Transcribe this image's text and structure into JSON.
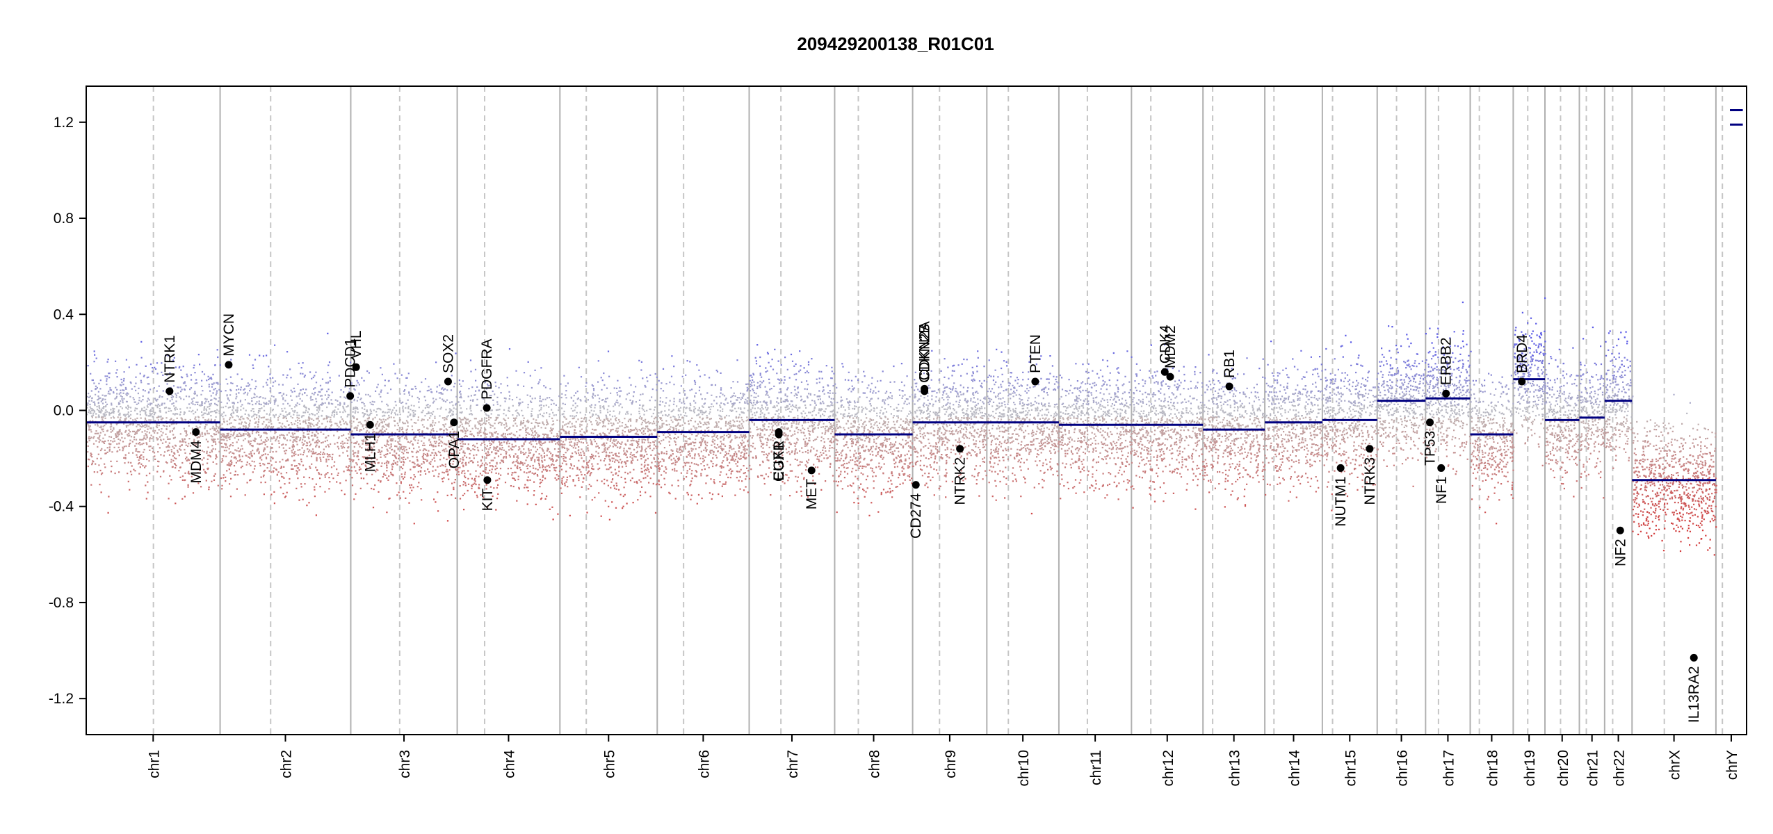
{
  "chart_data": {
    "type": "scatter",
    "title": "209429200138_R01C01",
    "xlabel": "",
    "ylabel": "",
    "ylim": [
      -1.35,
      1.35
    ],
    "y_ticks": [
      -1.2,
      -0.8,
      -0.4,
      0.0,
      0.4,
      0.8,
      1.2
    ],
    "y_tick_labels": [
      "-1.2",
      "-0.8",
      "-0.4",
      "0.0",
      "0.4",
      "0.8",
      "1.2"
    ],
    "chromosomes": [
      {
        "name": "chr1",
        "start": 0,
        "end": 249
      },
      {
        "name": "chr2",
        "start": 249,
        "end": 492
      },
      {
        "name": "chr3",
        "start": 492,
        "end": 690
      },
      {
        "name": "chr4",
        "start": 690,
        "end": 881
      },
      {
        "name": "chr5",
        "start": 881,
        "end": 1062
      },
      {
        "name": "chr6",
        "start": 1062,
        "end": 1233
      },
      {
        "name": "chr7",
        "start": 1233,
        "end": 1392
      },
      {
        "name": "chr8",
        "start": 1392,
        "end": 1537
      },
      {
        "name": "chr9",
        "start": 1537,
        "end": 1675
      },
      {
        "name": "chr10",
        "start": 1675,
        "end": 1809
      },
      {
        "name": "chr11",
        "start": 1809,
        "end": 1944
      },
      {
        "name": "chr12",
        "start": 1944,
        "end": 2077
      },
      {
        "name": "chr13",
        "start": 2077,
        "end": 2192
      },
      {
        "name": "chr14",
        "start": 2192,
        "end": 2299
      },
      {
        "name": "chr15",
        "start": 2299,
        "end": 2401
      },
      {
        "name": "chr16",
        "start": 2401,
        "end": 2491
      },
      {
        "name": "chr17",
        "start": 2491,
        "end": 2574
      },
      {
        "name": "chr18",
        "start": 2574,
        "end": 2654
      },
      {
        "name": "chr19",
        "start": 2654,
        "end": 2713
      },
      {
        "name": "chr20",
        "start": 2713,
        "end": 2777
      },
      {
        "name": "chr21",
        "start": 2777,
        "end": 2824
      },
      {
        "name": "chr22",
        "start": 2824,
        "end": 2875
      },
      {
        "name": "chrX",
        "start": 2875,
        "end": 3031
      },
      {
        "name": "chrY",
        "start": 3031,
        "end": 3088
      }
    ],
    "centromeres": [
      125,
      343,
      583,
      741,
      930,
      1111,
      1292,
      1436,
      1587,
      1715,
      1862,
      1980,
      2095,
      2209,
      2318,
      2437,
      2515,
      2591,
      2681,
      2742,
      2790,
      2839,
      2935,
      3043
    ],
    "segments": [
      {
        "start": 0,
        "end": 249,
        "value": -0.05
      },
      {
        "start": 249,
        "end": 492,
        "value": -0.08
      },
      {
        "start": 492,
        "end": 690,
        "value": -0.1
      },
      {
        "start": 690,
        "end": 881,
        "value": -0.12
      },
      {
        "start": 881,
        "end": 1062,
        "value": -0.11
      },
      {
        "start": 1062,
        "end": 1233,
        "value": -0.09
      },
      {
        "start": 1233,
        "end": 1392,
        "value": -0.04
      },
      {
        "start": 1392,
        "end": 1537,
        "value": -0.1
      },
      {
        "start": 1537,
        "end": 1675,
        "value": -0.05
      },
      {
        "start": 1675,
        "end": 1809,
        "value": -0.05
      },
      {
        "start": 1809,
        "end": 1944,
        "value": -0.06
      },
      {
        "start": 1944,
        "end": 2077,
        "value": -0.06
      },
      {
        "start": 2077,
        "end": 2192,
        "value": -0.08
      },
      {
        "start": 2192,
        "end": 2299,
        "value": -0.05
      },
      {
        "start": 2299,
        "end": 2401,
        "value": -0.04
      },
      {
        "start": 2401,
        "end": 2491,
        "value": 0.04
      },
      {
        "start": 2491,
        "end": 2574,
        "value": 0.05
      },
      {
        "start": 2574,
        "end": 2654,
        "value": -0.1
      },
      {
        "start": 2654,
        "end": 2713,
        "value": 0.13
      },
      {
        "start": 2713,
        "end": 2777,
        "value": -0.04
      },
      {
        "start": 2777,
        "end": 2824,
        "value": -0.03
      },
      {
        "start": 2824,
        "end": 2875,
        "value": 0.04
      },
      {
        "start": 2875,
        "end": 3031,
        "value": -0.29
      },
      {
        "start": 3057,
        "end": 3081,
        "value": 1.25
      },
      {
        "start": 3057,
        "end": 3081,
        "value": 1.19
      }
    ],
    "genes": [
      {
        "name": "NTRK1",
        "x": 155,
        "y": 0.08
      },
      {
        "name": "MDM4",
        "x": 204,
        "y": -0.09
      },
      {
        "name": "MYCN",
        "x": 265,
        "y": 0.19
      },
      {
        "name": "PDCD1",
        "x": 491,
        "y": 0.06
      },
      {
        "name": "VHL",
        "x": 502,
        "y": 0.18
      },
      {
        "name": "MLH1",
        "x": 528,
        "y": -0.06
      },
      {
        "name": "SOX2",
        "x": 673,
        "y": 0.12
      },
      {
        "name": "OPA1",
        "x": 684,
        "y": -0.05
      },
      {
        "name": "PDGFRA",
        "x": 745,
        "y": 0.01
      },
      {
        "name": "KIT",
        "x": 746,
        "y": -0.29
      },
      {
        "name": "EGFR",
        "x": 1288,
        "y": -0.09
      },
      {
        "name": "CUX1",
        "x": 1288,
        "y": -0.1
      },
      {
        "name": "MET",
        "x": 1349,
        "y": -0.25
      },
      {
        "name": "CD274",
        "x": 1543,
        "y": -0.31
      },
      {
        "name": "CDKN2A",
        "x": 1559,
        "y": 0.09
      },
      {
        "name": "CDKN2B",
        "x": 1559,
        "y": 0.08
      },
      {
        "name": "NTRK2",
        "x": 1625,
        "y": -0.16
      },
      {
        "name": "PTEN",
        "x": 1765,
        "y": 0.12
      },
      {
        "name": "CDK4",
        "x": 2006,
        "y": 0.16
      },
      {
        "name": "MDM2",
        "x": 2016,
        "y": 0.14
      },
      {
        "name": "RB1",
        "x": 2126,
        "y": 0.1
      },
      {
        "name": "NUTM1",
        "x": 2333,
        "y": -0.24
      },
      {
        "name": "NTRK3",
        "x": 2387,
        "y": -0.16
      },
      {
        "name": "TP53",
        "x": 2499,
        "y": -0.05
      },
      {
        "name": "NF1",
        "x": 2520,
        "y": -0.24
      },
      {
        "name": "ERBB2",
        "x": 2529,
        "y": 0.07
      },
      {
        "name": "BRD4",
        "x": 2670,
        "y": 0.12
      },
      {
        "name": "NF2",
        "x": 2853,
        "y": -0.5
      },
      {
        "name": "IL13RA2",
        "x": 2990,
        "y": -1.03
      }
    ]
  }
}
